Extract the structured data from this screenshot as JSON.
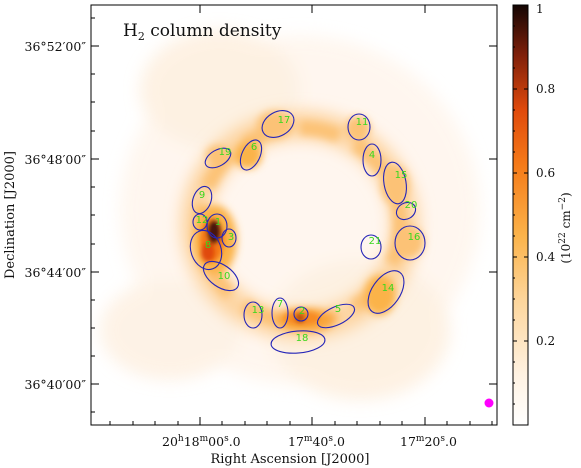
{
  "panel_title": {
    "main": "H",
    "sub": "2",
    "rest": " column density"
  },
  "x_axis": {
    "label": "Right Ascension [J2000]",
    "ticks": [
      {
        "h": "20",
        "m": "18",
        "s": "00",
        "sf": "0"
      },
      {
        "h": "",
        "m": "17",
        "s": "40",
        "sf": "0"
      },
      {
        "h": "",
        "m": "17",
        "s": "20",
        "sf": "0"
      }
    ]
  },
  "y_axis": {
    "label": "Declination [J2000]",
    "ticks": [
      "36°52′00″",
      "36°48′00″",
      "36°44′00″",
      "36°40′00″"
    ]
  },
  "colorbar": {
    "title": "(10",
    "exp1": "22",
    "mid": " cm",
    "exp2": "−2",
    "end": ")",
    "tick_labels": [
      "1",
      "0.8",
      "0.6",
      "0.4",
      "0.2"
    ],
    "tick_values": [
      1.0,
      0.8,
      0.6,
      0.4,
      0.2
    ],
    "range": [
      0.0,
      1.0
    ],
    "colors": {
      "low": "#ffffff",
      "mid": "#fbb34a",
      "high_mid": "#f05a10",
      "high": "#1a0804"
    }
  },
  "ellipse_labels": [
    "1",
    "2",
    "3",
    "4",
    "5",
    "6",
    "7",
    "8",
    "9",
    "10",
    "11",
    "12",
    "13",
    "14",
    "15",
    "16",
    "17",
    "18",
    "19",
    "20",
    "21"
  ],
  "beam_color": "#ff00ff",
  "ellipse_color": "#2525b8",
  "label_color": "#39d81e"
}
